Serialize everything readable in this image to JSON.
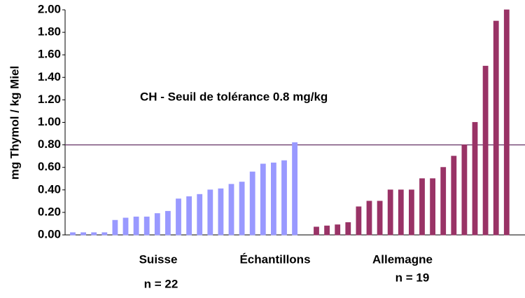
{
  "chart_data": {
    "type": "bar",
    "y_label": "mg Thymol / kg Miel",
    "x_label": "Échantillons",
    "threshold": {
      "value": 0.8,
      "label": "CH - Seuil de tolérance  0.8 mg/kg",
      "color": "#663366"
    },
    "ylim": [
      0,
      2
    ],
    "yticks": [
      {
        "value": 0,
        "label": "0.00"
      },
      {
        "value": 0.2,
        "label": "0.20"
      },
      {
        "value": 0.4,
        "label": "0.40"
      },
      {
        "value": 0.6,
        "label": "0.60"
      },
      {
        "value": 0.8,
        "label": "0.80"
      },
      {
        "value": 1.0,
        "label": "1.00"
      },
      {
        "value": 1.2,
        "label": "1.20"
      },
      {
        "value": 1.4,
        "label": "1.40"
      },
      {
        "value": 1.6,
        "label": "1.60"
      },
      {
        "value": 1.8,
        "label": "1.80"
      },
      {
        "value": 2.0,
        "label": "2.00"
      }
    ],
    "series": [
      {
        "name": "Suisse",
        "count_label": "n = 22",
        "color": "#9999ff",
        "values": [
          0.02,
          0.02,
          0.02,
          0.02,
          0.13,
          0.15,
          0.16,
          0.16,
          0.19,
          0.21,
          0.32,
          0.34,
          0.36,
          0.4,
          0.41,
          0.45,
          0.47,
          0.56,
          0.63,
          0.64,
          0.66,
          0.82
        ]
      },
      {
        "name": "Allemagne",
        "count_label": "n = 19",
        "color": "#993366",
        "values": [
          0.07,
          0.08,
          0.09,
          0.11,
          0.25,
          0.3,
          0.3,
          0.4,
          0.4,
          0.4,
          0.5,
          0.5,
          0.6,
          0.7,
          0.8,
          1.0,
          1.5,
          1.9,
          2.0
        ]
      }
    ]
  }
}
